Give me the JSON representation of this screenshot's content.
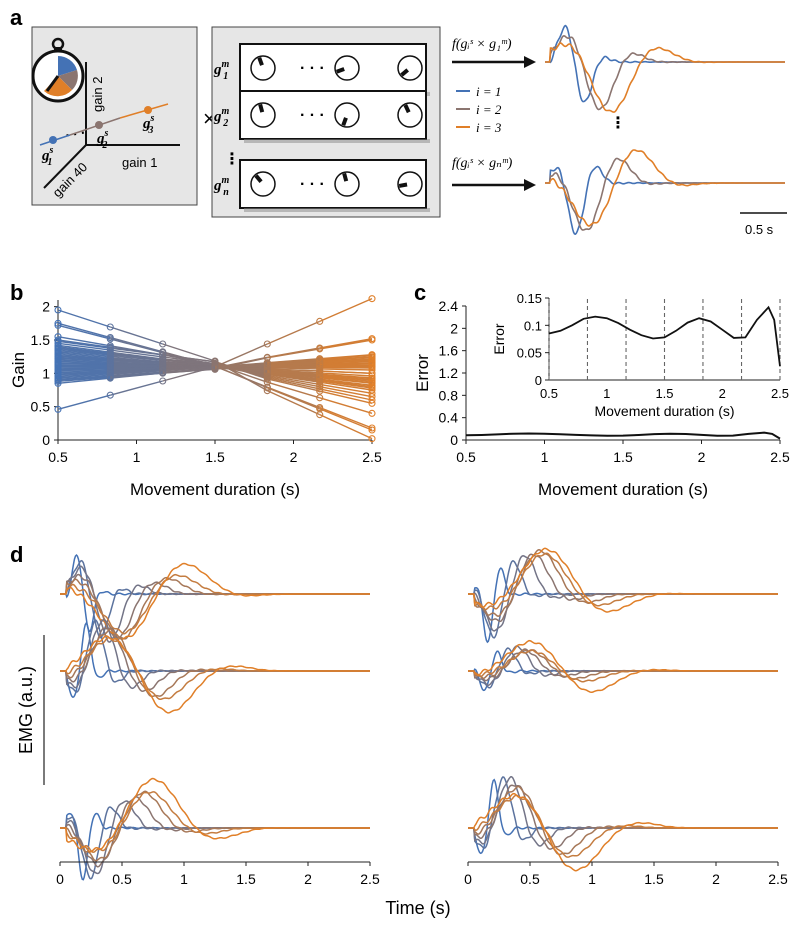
{
  "colors": {
    "blue": "#4472b5",
    "mid": "#8b7570",
    "orange": "#e07f28",
    "panel_bg": "#e6e6e6",
    "axis": "#222222",
    "grid": "#666666"
  },
  "panel_labels": {
    "a": "a",
    "b": "b",
    "c": "c",
    "d": "d"
  },
  "panel_a": {
    "axis_labels": {
      "gain1": "gain 1",
      "gain2": "gain 2",
      "gain40": "gain 40"
    },
    "ellipsis": ". . .",
    "vdots": "⋮",
    "times_symbol": "×",
    "synergy_points": [
      {
        "label": "g",
        "sub": "1",
        "sup": "s",
        "color": "#4472b5"
      },
      {
        "label": "g",
        "sub": "2",
        "sup": "s",
        "color": "#8b7570"
      },
      {
        "label": "g",
        "sub": "3",
        "sup": "s",
        "color": "#e07f28"
      }
    ],
    "muscle_rows": [
      {
        "label": "g",
        "sub": "1",
        "sup": "m",
        "angles": [
          -110,
          160,
          140
        ]
      },
      {
        "label": "g",
        "sub": "2",
        "sup": "m",
        "angles": [
          -105,
          110,
          -115
        ]
      },
      {
        "label": "g",
        "sub": "n",
        "sup": "m",
        "angles": [
          -130,
          -105,
          170
        ]
      }
    ],
    "row_ellipsis": "· · ·",
    "formula_top": "f(gᵢˢ × g₁ᵐ)",
    "formula_bottom": "f(gᵢˢ × gₙᵐ)",
    "legend": [
      {
        "text": "i = 1",
        "color": "#4472b5"
      },
      {
        "text": "i = 2",
        "color": "#8b7570"
      },
      {
        "text": "i = 3",
        "color": "#e07f28"
      }
    ],
    "scale_bar_label": "0.5 s"
  },
  "chart_data": [
    {
      "id": "b",
      "type": "line",
      "title": "",
      "xlabel": "Movement duration (s)",
      "ylabel": "Gain",
      "xlim": [
        0.5,
        2.5
      ],
      "ylim": [
        0,
        2.1
      ],
      "xticks": [
        0.5,
        1,
        1.5,
        2,
        2.5
      ],
      "yticks": [
        0,
        0.5,
        1,
        1.5,
        2
      ],
      "x": [
        0.5,
        0.833,
        1.167,
        1.5,
        1.833,
        2.167,
        2.5
      ],
      "series_count": 40,
      "start_gains": [
        1.95,
        1.75,
        1.72,
        1.55,
        1.5,
        1.48,
        1.45,
        1.42,
        1.4,
        1.38,
        1.36,
        1.34,
        1.32,
        1.3,
        1.28,
        1.26,
        1.25,
        1.23,
        1.22,
        1.2,
        1.18,
        1.16,
        1.15,
        1.13,
        1.12,
        1.1,
        1.08,
        1.06,
        1.05,
        1.03,
        1.01,
        0.99,
        0.97,
        0.95,
        0.93,
        0.91,
        0.9,
        0.88,
        0.85,
        0.46
      ],
      "end_gains": [
        0.02,
        0.15,
        0.18,
        0.4,
        0.55,
        0.6,
        0.65,
        0.7,
        0.75,
        0.78,
        0.8,
        0.82,
        0.85,
        0.88,
        0.9,
        0.93,
        0.96,
        1.0,
        1.05,
        1.08,
        1.1,
        1.12,
        1.14,
        1.16,
        1.18,
        1.2,
        1.22,
        1.24,
        1.25,
        1.0,
        0.92,
        0.86,
        1.1,
        1.27,
        1.2,
        1.15,
        1.28,
        1.5,
        1.52,
        2.12
      ]
    },
    {
      "id": "c",
      "type": "line",
      "xlabel": "Movement duration (s)",
      "ylabel": "Error",
      "xlim": [
        0.5,
        2.5
      ],
      "ylim": [
        0,
        2.4
      ],
      "xticks": [
        0.5,
        1,
        1.5,
        2,
        2.5
      ],
      "yticks": [
        0,
        0.4,
        0.8,
        1.2,
        1.6,
        2,
        2.4
      ],
      "x": [
        0.5,
        0.6,
        0.7,
        0.8,
        0.9,
        1.0,
        1.1,
        1.2,
        1.3,
        1.4,
        1.5,
        1.6,
        1.7,
        1.8,
        1.9,
        2.0,
        2.1,
        2.2,
        2.3,
        2.4,
        2.45,
        2.5
      ],
      "y": [
        0.085,
        0.09,
        0.1,
        0.112,
        0.116,
        0.113,
        0.104,
        0.092,
        0.082,
        0.076,
        0.078,
        0.09,
        0.105,
        0.113,
        0.107,
        0.092,
        0.077,
        0.078,
        0.11,
        0.133,
        0.11,
        0.025
      ],
      "inset": {
        "xlabel": "Movement duration (s)",
        "ylabel": "Error",
        "xlim": [
          0.5,
          2.5
        ],
        "ylim": [
          0,
          0.15
        ],
        "xticks": [
          0.5,
          1,
          1.5,
          2,
          2.5
        ],
        "yticks": [
          0,
          0.05,
          0.1,
          0.15
        ],
        "dashed_lines_x": [
          0.5,
          0.833,
          1.167,
          1.5,
          1.833,
          2.167,
          2.5
        ]
      }
    },
    {
      "id": "d",
      "type": "line",
      "xlabel": "Time (s)",
      "ylabel": "EMG (a.u.)",
      "xlim": [
        0,
        2.5
      ],
      "xticks": [
        0,
        0.5,
        1,
        1.5,
        2,
        2.5
      ],
      "durations": [
        0.5,
        0.833,
        1.167,
        1.5,
        1.833,
        2.167,
        2.5
      ],
      "panels": [
        {
          "col": 0,
          "row": 0,
          "sign": 1,
          "peak_amp": [
            1.0,
            1.0,
            1.0,
            0.9,
            0.9,
            0.8,
            1.0
          ]
        },
        {
          "col": 0,
          "row": 1,
          "sign": -1,
          "peak_amp": [
            1.0,
            1.0,
            1.0,
            0.9,
            0.9,
            0.8,
            1.0
          ]
        },
        {
          "col": 0,
          "row": 2,
          "sign": 1,
          "peak_amp": [
            1.0,
            1.0,
            1.0,
            0.9,
            0.9,
            0.8,
            1.0
          ]
        },
        {
          "col": 1,
          "row": 0,
          "sign": 1,
          "peak_amp": [
            1.0,
            1.0,
            1.0,
            0.9,
            0.9,
            0.8,
            0.9
          ]
        },
        {
          "col": 1,
          "row": 1,
          "sign": 1,
          "peak_amp": [
            0.6,
            0.6,
            0.6,
            0.5,
            0.5,
            0.5,
            0.8
          ]
        },
        {
          "col": 1,
          "row": 2,
          "sign": 1,
          "peak_amp": [
            1.0,
            1.0,
            1.0,
            0.9,
            0.9,
            0.8,
            1.0
          ]
        }
      ]
    }
  ]
}
